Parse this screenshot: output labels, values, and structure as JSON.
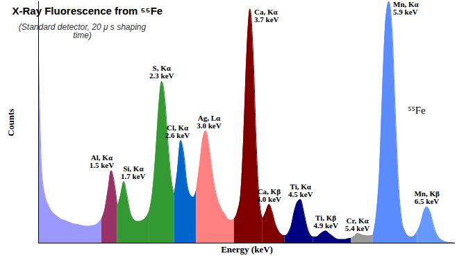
{
  "chart_data": {
    "type": "area",
    "title": "X-Ray Fluorescence from ⁵⁵Fe",
    "subtitle": "(Standard detector, 20 μ s shaping time)",
    "x_label": "Energy (keV)",
    "y_label": "Counts",
    "xlim": [
      0.35,
      6.95
    ],
    "ylim": [
      0,
      100
    ],
    "tick_labels": false,
    "series": [
      {
        "color": "#9999ff",
        "x": [
          0.35,
          0.4,
          0.45,
          0.5,
          0.55,
          0.6,
          0.65,
          0.7,
          0.75,
          0.8,
          0.85,
          0.9,
          0.95,
          1.0,
          1.05,
          1.1,
          1.15,
          1.2,
          1.25,
          1.3,
          1.35
        ],
        "values": [
          77,
          30,
          20,
          16,
          13.5,
          12,
          11,
          10,
          9.5,
          9,
          8.5,
          8,
          7.8,
          7.5,
          7.2,
          7,
          7,
          7.2,
          7.5,
          8.5,
          10
        ]
      },
      {
        "name": "Al, Kα",
        "label": "1.5 keV",
        "color": "#993366",
        "x": [
          1.35,
          1.4,
          1.45,
          1.5,
          1.55,
          1.6
        ],
        "values": [
          10,
          14,
          22,
          30,
          25,
          15
        ]
      },
      {
        "name": "Si, Kα",
        "label": "1.7 keV",
        "color": "#339933",
        "x": [
          1.6,
          1.65,
          1.7,
          1.75,
          1.8,
          1.85,
          1.9,
          1.95,
          2.0,
          2.05,
          2.1
        ],
        "values": [
          15,
          20,
          25.5,
          20,
          13,
          10,
          9,
          9,
          9.5,
          10.5,
          13
        ]
      },
      {
        "name": "S, Kα",
        "label": "2.3 keV",
        "color": "#339933",
        "x": [
          2.1,
          2.15,
          2.2,
          2.25,
          2.3,
          2.35,
          2.4,
          2.45,
          2.5
        ],
        "values": [
          13,
          20,
          35,
          55,
          67,
          60,
          42,
          27,
          20
        ]
      },
      {
        "name": "Cl, Kα",
        "label": "2.6 keV",
        "color": "#0066cc",
        "x": [
          2.5,
          2.55,
          2.6,
          2.65,
          2.7,
          2.75,
          2.8,
          2.85
        ],
        "values": [
          20,
          30,
          42.5,
          37,
          25,
          20,
          19,
          22
        ]
      },
      {
        "name": "Ag, Lα",
        "label": "3.0 keV",
        "color": "#ff8080",
        "x": [
          2.85,
          2.9,
          2.95,
          3.0,
          3.05,
          3.1,
          3.15,
          3.2,
          3.25,
          3.3,
          3.35,
          3.4,
          3.45
        ],
        "values": [
          22,
          32,
          43,
          46.5,
          40,
          30,
          22,
          17,
          14,
          12,
          10,
          9.5,
          10
        ]
      },
      {
        "name": "Ca, Kα",
        "label": "3.7 keV",
        "color": "#800000",
        "x": [
          3.45,
          3.5,
          3.55,
          3.6,
          3.65,
          3.7,
          3.75,
          3.8,
          3.85,
          3.9
        ],
        "values": [
          10,
          13,
          20,
          45,
          80,
          97,
          78,
          40,
          17,
          10
        ]
      },
      {
        "name": "Ca, Kβ",
        "label": "4.0 keV",
        "color": "#800000",
        "x": [
          3.9,
          3.95,
          4.0,
          4.05,
          4.1,
          4.15,
          4.2,
          4.25
        ],
        "values": [
          10,
          13,
          16,
          13,
          8,
          5,
          3.5,
          3
        ]
      },
      {
        "name": "Ti, Kα",
        "label": "4.5 keV",
        "color": "#000080",
        "x": [
          4.25,
          4.3,
          4.35,
          4.4,
          4.45,
          4.5,
          4.55,
          4.6,
          4.65,
          4.7
        ],
        "values": [
          3,
          4,
          7,
          13,
          17,
          18,
          13,
          7,
          3.5,
          2.5
        ]
      },
      {
        "name": "Ti, Kβ",
        "label": "4.9 keV",
        "color": "#000080",
        "x": [
          4.7,
          4.75,
          4.8,
          4.85,
          4.9,
          4.95,
          5.0,
          5.05,
          5.1,
          5.15,
          5.2,
          5.25,
          5.3
        ],
        "values": [
          2.5,
          2.5,
          3.5,
          4.5,
          5,
          4,
          3,
          2,
          1.5,
          1.5,
          1.5,
          1.8,
          2
        ]
      },
      {
        "name": "Cr, Kα",
        "label": "5.4 keV",
        "color": "#999999",
        "x": [
          5.3,
          5.35,
          5.4,
          5.45,
          5.5,
          5.55,
          5.6,
          5.65
        ],
        "values": [
          2,
          2.8,
          4,
          3.6,
          3.2,
          3,
          3,
          3.5
        ]
      },
      {
        "name": "Mn, Kα",
        "label": "5.9 keV",
        "color": "#5b8cff",
        "x": [
          5.65,
          5.7,
          5.75,
          5.8,
          5.85,
          5.9,
          5.95,
          6.0,
          6.05,
          6.1,
          6.15,
          6.2,
          6.25,
          6.3,
          6.35
        ],
        "values": [
          3.5,
          12,
          30,
          65,
          93,
          100,
          88,
          55,
          25,
          10,
          5,
          3,
          2.5,
          3,
          5
        ]
      },
      {
        "name": "Mn, Kβ",
        "label": "6.5 keV",
        "color": "#6699ff",
        "x": [
          6.35,
          6.4,
          6.45,
          6.5,
          6.55,
          6.6,
          6.65,
          6.7,
          6.75,
          6.8,
          6.85,
          6.9,
          6.95
        ],
        "values": [
          5,
          8,
          13,
          15,
          13,
          8,
          4,
          2,
          1,
          0.5,
          0.3,
          0.2,
          0
        ]
      }
    ],
    "annotations": [
      {
        "text": "⁵⁵Fe",
        "x": 6.2,
        "y": 55
      }
    ]
  }
}
